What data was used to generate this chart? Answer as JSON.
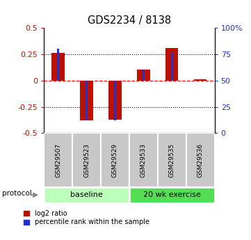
{
  "title": "GDS2234 / 8138",
  "samples": [
    "GSM29507",
    "GSM29523",
    "GSM29529",
    "GSM29533",
    "GSM29535",
    "GSM29536"
  ],
  "log2_ratio": [
    0.26,
    -0.38,
    -0.37,
    0.1,
    0.31,
    0.01
  ],
  "percentile_rank": [
    80,
    12,
    12,
    60,
    77,
    50
  ],
  "groups": [
    {
      "label": "baseline",
      "start": 0,
      "end": 3,
      "color": "#bbffbb"
    },
    {
      "label": "20 wk exercise",
      "start": 3,
      "end": 6,
      "color": "#55dd55"
    }
  ],
  "ylim": [
    -0.5,
    0.5
  ],
  "yticks_left": [
    -0.5,
    -0.25,
    0.0,
    0.25,
    0.5
  ],
  "right_label_map": {
    "-0.5": "0",
    "-0.25": "25",
    "0.0": "50",
    "0.25": "75",
    "0.5": "100%"
  },
  "bar_color_red": "#bb1100",
  "bar_color_blue": "#2233cc",
  "legend_red": "log2 ratio",
  "legend_blue": "percentile rank within the sample",
  "protocol_label": "protocol",
  "figsize": [
    3.61,
    3.45
  ],
  "dpi": 100
}
